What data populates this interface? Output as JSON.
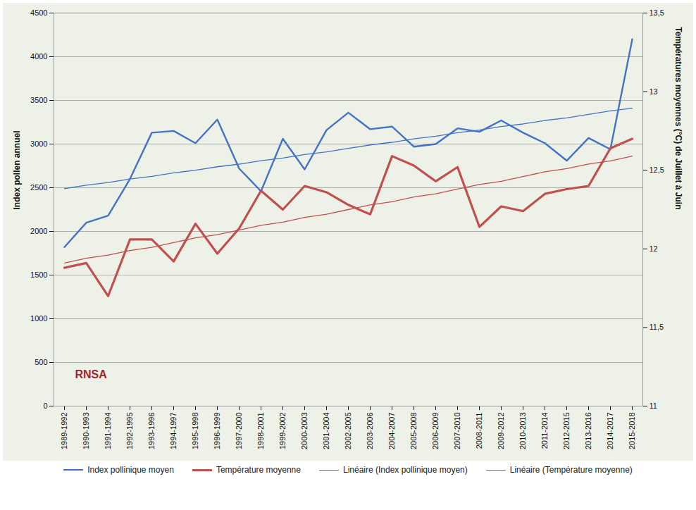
{
  "chart_data": {
    "type": "line",
    "y_label": "Index pollen annuel",
    "y2_label": "Températures moyennes (°C) de Juillet à Juin",
    "annotations": [
      "RNSA"
    ],
    "categories": [
      "1989-1992",
      "1990-1993",
      "1991-1994",
      "1992-1995",
      "1993-1996",
      "1994-1997",
      "1995-1998",
      "1996-1999",
      "1997-2000",
      "1998-2001",
      "1999-2002",
      "2000-2003",
      "2001-2004",
      "2002-2005",
      "2003-2006",
      "2004-2007",
      "2005-2008",
      "2006-2009",
      "2007-2010",
      "2008-2011",
      "2009-2012",
      "2010-2013",
      "2011-2014",
      "2012-2015",
      "2013-2016",
      "2014-2017",
      "2015-2018"
    ],
    "series": [
      {
        "name": "Index pollinique moyen",
        "color": "#4472c4",
        "line_style": "solid",
        "values": [
          1820,
          2100,
          2180,
          2600,
          3130,
          3150,
          3010,
          3280,
          2720,
          2460,
          3060,
          2710,
          3160,
          3360,
          3170,
          3200,
          2970,
          3000,
          3180,
          3140,
          3270,
          3130,
          3010,
          2810,
          3070,
          2940,
          4200
        ]
      },
      {
        "name": "Température moyenne",
        "color": "#c0504d",
        "line_style": "solid",
        "axis": "y2",
        "values": [
          11.88,
          11.91,
          11.7,
          12.06,
          12.06,
          11.92,
          12.16,
          11.97,
          12.13,
          12.37,
          12.25,
          12.4,
          12.36,
          12.28,
          12.22,
          12.59,
          12.53,
          12.43,
          12.52,
          12.14,
          12.27,
          12.24,
          12.35,
          12.38,
          12.4,
          12.64,
          12.7
        ]
      },
      {
        "name": "Linéaire (Index pollinique moyen)",
        "color": "#4472c4",
        "line_style": "thin",
        "values": [
          2490,
          2530,
          2560,
          2600,
          2630,
          2670,
          2700,
          2740,
          2770,
          2810,
          2840,
          2880,
          2910,
          2950,
          2990,
          3020,
          3060,
          3090,
          3130,
          3160,
          3200,
          3230,
          3270,
          3300,
          3340,
          3380,
          3410
        ]
      },
      {
        "name": "Linéaire (Température moyenne)",
        "color": "#c0504d",
        "line_style": "thin",
        "axis": "y2",
        "values": [
          11.91,
          11.94,
          11.96,
          11.99,
          12.01,
          12.04,
          12.07,
          12.09,
          12.12,
          12.15,
          12.17,
          12.2,
          12.22,
          12.25,
          12.28,
          12.3,
          12.33,
          12.35,
          12.38,
          12.41,
          12.43,
          12.46,
          12.49,
          12.51,
          12.54,
          12.56,
          12.59
        ]
      }
    ],
    "ylim": [
      0,
      4500
    ],
    "yticks": [
      0,
      500,
      1000,
      1500,
      2000,
      2500,
      3000,
      3500,
      4000,
      4500
    ],
    "y2lim": [
      11,
      13.5
    ],
    "y2ticks": [
      11,
      {
        "value": 11.5,
        "label": "11,5"
      },
      12,
      {
        "value": 12.5,
        "label": "12,5"
      },
      13,
      {
        "value": 13.5,
        "label": "13,5"
      }
    ],
    "grid": true,
    "legend": "bottom"
  }
}
